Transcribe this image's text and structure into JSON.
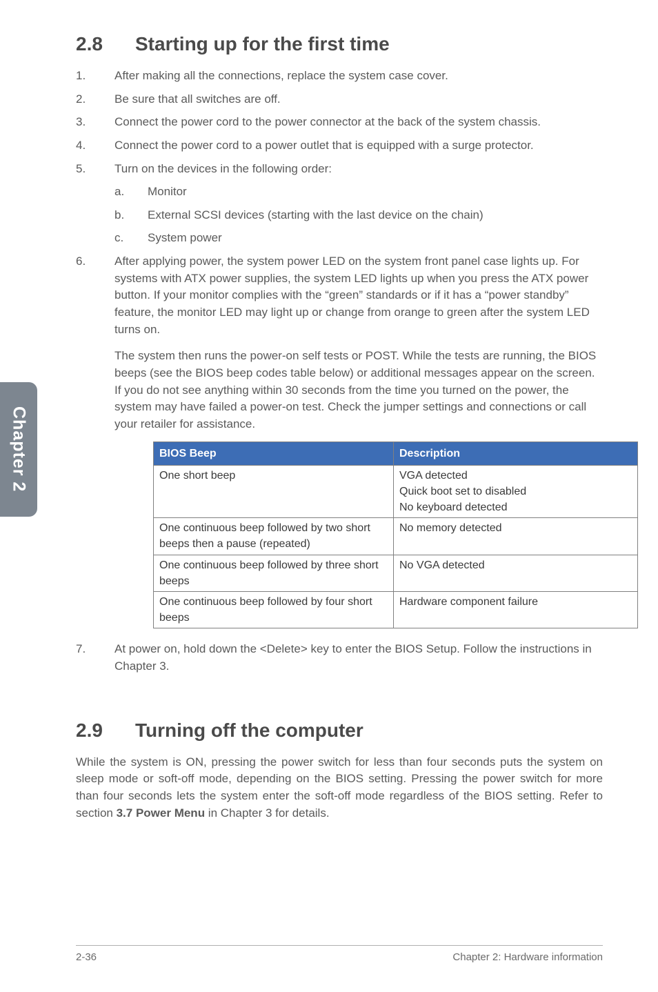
{
  "sideTab": "Chapter 2",
  "section28": {
    "number": "2.8",
    "title": "Starting up for the first time",
    "items": [
      "After making all the connections, replace the system case cover.",
      "Be sure that all switches are off.",
      "Connect the power cord to the power connector at the back of the system chassis.",
      "Connect the power cord to a power outlet that is equipped with a surge protector.",
      "Turn on the devices in the following order:"
    ],
    "sub5": [
      {
        "letter": "a.",
        "text": "Monitor"
      },
      {
        "letter": "b.",
        "text": "External SCSI devices (starting with the last device on the chain)"
      },
      {
        "letter": "c.",
        "text": "System power"
      }
    ],
    "item6a": "After applying power, the system power LED on the system front panel case lights up. For systems with ATX power supplies, the system LED lights up when you press the ATX power button. If your monitor complies with the “green” standards or if it has a “power standby” feature, the monitor LED may light up or change from orange to green after the system LED turns on.",
    "item6b": "The system then runs the power-on self tests or POST. While the tests are running, the BIOS beeps (see the BIOS beep codes table below) or additional messages appear on the screen. If you do not see anything within 30 seconds from the time you turned on the power, the system may have failed a power-on test. Check the jumper settings and connections or call your retailer for assistance.",
    "item7": "At power on, hold down the <Delete> key to enter the BIOS Setup. Follow the instructions in Chapter 3."
  },
  "biosTable": {
    "headers": [
      "BIOS Beep",
      "Description"
    ],
    "rows": [
      [
        "One short beep",
        "VGA detected\nQuick boot set to disabled\nNo keyboard detected"
      ],
      [
        "One continuous beep followed by two short beeps then a pause (repeated)",
        "No memory detected"
      ],
      [
        "One continuous beep followed by three short beeps",
        "No VGA detected"
      ],
      [
        "One continuous beep followed by four short beeps",
        "Hardware component failure"
      ]
    ]
  },
  "section29": {
    "number": "2.9",
    "title": "Turning off the computer",
    "body_pre": "While the system is ON, pressing the power switch for less than four seconds puts the system on sleep mode or soft-off mode, depending on the BIOS setting. Pressing the power switch for more than four seconds lets the system enter the soft-off mode regardless of the BIOS setting. Refer to section ",
    "body_bold": "3.7 Power Menu",
    "body_post": " in Chapter 3 for details."
  },
  "footer": {
    "left": "2-36",
    "right": "Chapter 2: Hardware information"
  },
  "colors": {
    "tableHeaderBg": "#3d6db5",
    "sideTabBg": "#7d8690"
  }
}
